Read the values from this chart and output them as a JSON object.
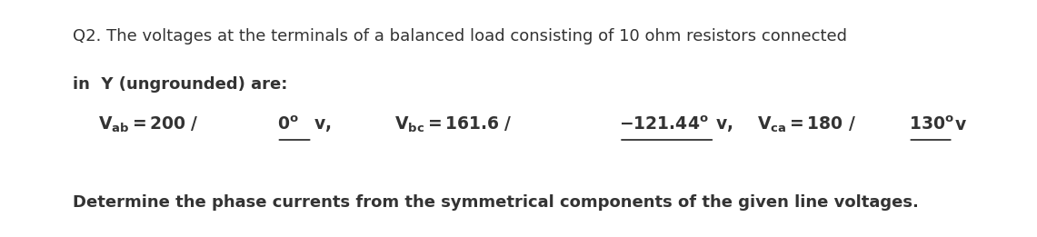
{
  "bg_color": "#ffffff",
  "text_color": "#333333",
  "line1": "Q2. The voltages at the terminals of a balanced load consisting of 10 ohm resistors connected",
  "line2": "in  Y (ungrounded) are:",
  "bottom_line": "Determine the phase currents from the symmetrical components of the given line voltages.",
  "font_size_main": 13.0,
  "font_size_eq": 13.5,
  "fig_width": 11.41,
  "fig_height": 2.61,
  "eq_segments": {
    "vab_pre": "$\\mathbf{V_{ab} = 200 \\ /}$",
    "vab_angle": "$\\mathbf{0^{o}}$",
    "vab_post": " v,",
    "vbc_pre": "$\\mathbf{V_{bc} = 161.6 \\ /}$",
    "vbc_angle": "$\\mathbf{-121.44^{o}}$",
    "vbc_post": " v,",
    "vca_pre": "$\\mathbf{V_{ca} = 180 \\ /}$",
    "vca_angle": "$\\mathbf{130^{o}}$",
    "vca_post": " v"
  }
}
